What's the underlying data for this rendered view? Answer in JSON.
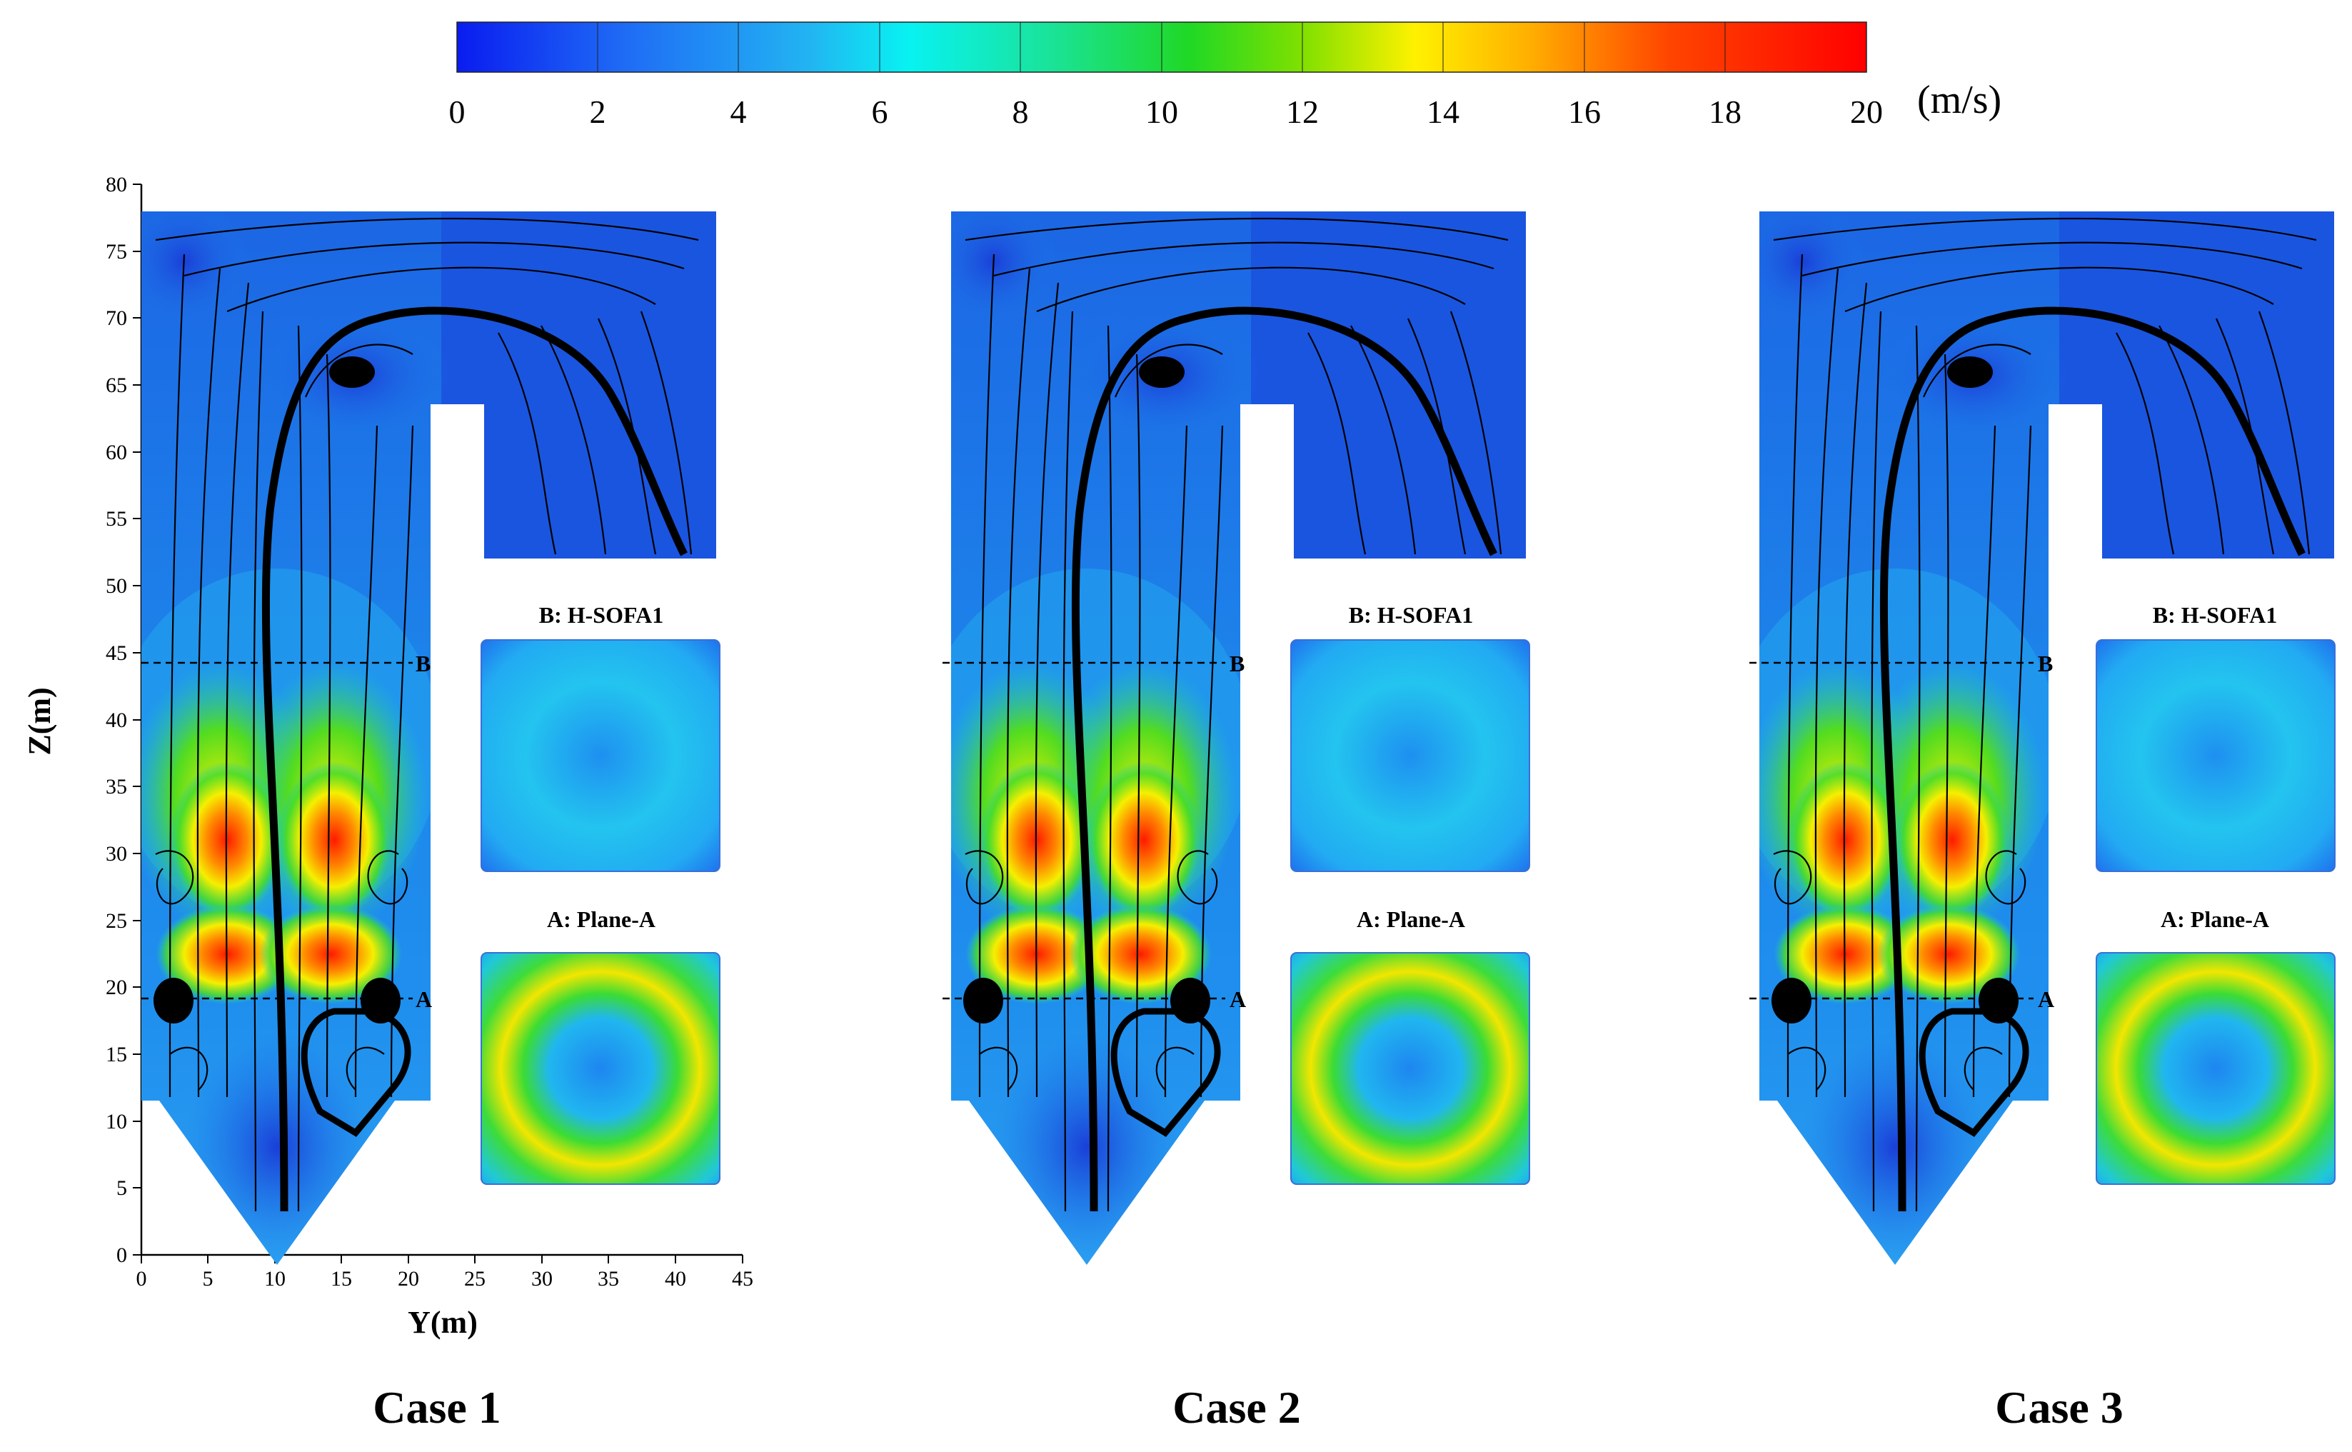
{
  "colorbar": {
    "ticks": [
      "0",
      "2",
      "4",
      "6",
      "8",
      "10",
      "12",
      "14",
      "16",
      "18",
      "20"
    ],
    "unit": "(m/s)"
  },
  "axes": {
    "ylabel": "Z(m)",
    "xlabel": "Y(m)",
    "yticks": [
      "0",
      "5",
      "10",
      "15",
      "20",
      "25",
      "30",
      "35",
      "40",
      "45",
      "50",
      "55",
      "60",
      "65",
      "70",
      "75",
      "80"
    ],
    "xticks": [
      "0",
      "5",
      "10",
      "15",
      "20",
      "25",
      "30",
      "35",
      "40",
      "45"
    ]
  },
  "planes": {
    "top_label": "B: H-SOFA1",
    "bottom_label": "A: Plane-A",
    "line_b": "B",
    "line_a": "A"
  },
  "cases": [
    "Case 1",
    "Case 2",
    "Case 3"
  ],
  "colors": {
    "flow_base": "#1d6fe8",
    "flow_deep": "#0a2fd8",
    "high_velocity": "#ff2a00",
    "mid_velocity": "#7ee000"
  }
}
